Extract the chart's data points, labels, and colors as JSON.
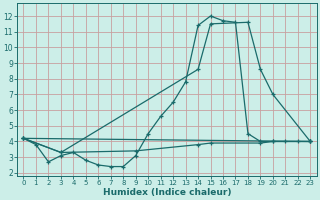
{
  "xlabel": "Humidex (Indice chaleur)",
  "bg_color": "#cceee8",
  "line_color": "#1a6b6b",
  "grid_color_major": "#c8a0a0",
  "xlim": [
    -0.5,
    23.5
  ],
  "ylim": [
    1.8,
    12.8
  ],
  "xticks": [
    0,
    1,
    2,
    3,
    4,
    5,
    6,
    7,
    8,
    9,
    10,
    11,
    12,
    13,
    14,
    15,
    16,
    17,
    18,
    19,
    20,
    21,
    22,
    23
  ],
  "yticks": [
    2,
    3,
    4,
    5,
    6,
    7,
    8,
    9,
    10,
    11,
    12
  ],
  "line1_x": [
    0,
    1,
    2,
    3,
    4,
    5,
    6,
    7,
    8,
    9,
    10,
    11,
    12,
    13,
    14,
    15,
    16,
    17,
    18,
    19,
    20,
    21,
    22,
    23
  ],
  "line1_y": [
    4.2,
    3.8,
    2.7,
    3.1,
    3.3,
    2.8,
    2.5,
    2.4,
    2.4,
    3.1,
    4.5,
    5.6,
    6.5,
    7.8,
    11.4,
    12.0,
    11.7,
    11.6,
    4.5,
    4.0,
    4.0,
    4.0,
    4.0,
    4.0
  ],
  "line2_x": [
    0,
    3,
    14,
    15,
    18,
    19,
    20,
    23
  ],
  "line2_y": [
    4.2,
    3.3,
    8.6,
    11.5,
    11.6,
    8.6,
    7.0,
    4.0
  ],
  "line3_x": [
    0,
    23
  ],
  "line3_y": [
    4.2,
    4.0
  ],
  "line4_x": [
    0,
    3,
    9,
    14,
    15,
    19,
    20,
    23
  ],
  "line4_y": [
    4.2,
    3.3,
    3.4,
    3.8,
    3.9,
    3.9,
    4.0,
    4.0
  ]
}
